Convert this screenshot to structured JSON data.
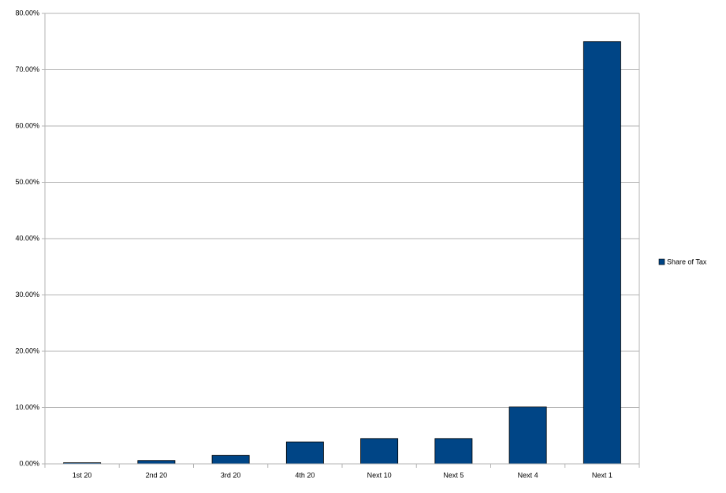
{
  "chart_data": {
    "type": "bar",
    "categories": [
      "1st 20",
      "2nd 20",
      "3rd 20",
      "4th 20",
      "Next 10",
      "Next 5",
      "Next 4",
      "Next 1"
    ],
    "series": [
      {
        "name": "Share of Tax",
        "color": "#004586",
        "values": [
          0.2,
          0.6,
          1.5,
          3.9,
          4.5,
          4.5,
          10.1,
          75.0
        ]
      }
    ],
    "ylim": [
      0,
      80
    ],
    "yticks": [
      {
        "value": 0,
        "label": "0.00%"
      },
      {
        "value": 10,
        "label": "10.00%"
      },
      {
        "value": 20,
        "label": "20.00%"
      },
      {
        "value": 30,
        "label": "30.00%"
      },
      {
        "value": 40,
        "label": "40.00%"
      },
      {
        "value": 50,
        "label": "50.00%"
      },
      {
        "value": 60,
        "label": "60.00%"
      },
      {
        "value": 70,
        "label": "70.00%"
      },
      {
        "value": 80,
        "label": "80.00%"
      }
    ],
    "grid": true,
    "legend": "right"
  }
}
